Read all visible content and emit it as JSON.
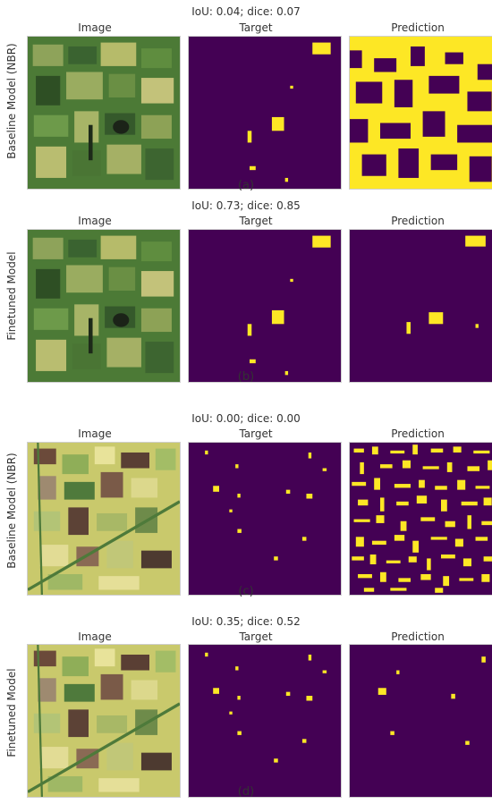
{
  "columns": {
    "image": "Image",
    "target": "Target",
    "prediction": "Prediction"
  },
  "colors": {
    "background": "#440154",
    "foreground": "#fde725"
  },
  "panels": [
    {
      "caption": "(a)",
      "metric": "IoU: 0.04; dice: 0.07",
      "row_label": "Baseline Model  (NBR)",
      "image_style": "dark-green-fields"
    },
    {
      "caption": "(b)",
      "metric": "IoU: 0.73; dice: 0.85",
      "row_label": "Finetuned Model",
      "image_style": "dark-green-fields"
    },
    {
      "caption": "(c)",
      "metric": "IoU: 0.00; dice: 0.00",
      "row_label": "Baseline Model  (NBR)",
      "image_style": "bright-yellow-fields"
    },
    {
      "caption": "(d)",
      "metric": "IoU: 0.35; dice: 0.52",
      "row_label": "Finetuned Model",
      "image_style": "bright-yellow-fields"
    }
  ]
}
